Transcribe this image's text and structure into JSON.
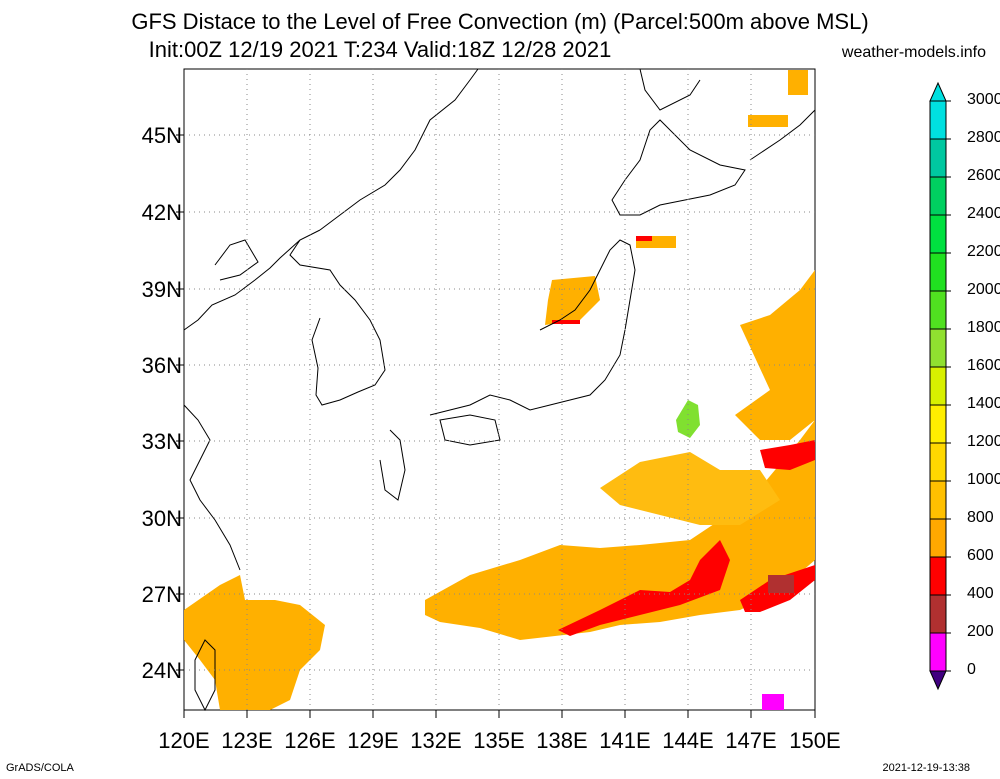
{
  "title_line1": "GFS Distace to the Level of Free Convection (m) (Parcel:500m above MSL)",
  "title_line2": "Init:00Z 12/19 2021 T:234 Valid:18Z 12/28 2021",
  "site": "weather-models.info",
  "lat_labels": [
    "45N",
    "42N",
    "39N",
    "36N",
    "33N",
    "30N",
    "27N",
    "24N"
  ],
  "lon_labels": [
    "120E",
    "123E",
    "126E",
    "129E",
    "132E",
    "135E",
    "138E",
    "141E",
    "144E",
    "147E",
    "150E"
  ],
  "colorbar": {
    "labels": [
      "3000",
      "2800",
      "2600",
      "2400",
      "2200",
      "2000",
      "1800",
      "1600",
      "1400",
      "1200",
      "1000",
      "800",
      "600",
      "400",
      "200",
      "0"
    ],
    "colors": [
      "#00e0e0",
      "#00c8a0",
      "#00d060",
      "#00e040",
      "#20e020",
      "#50e020",
      "#90e030",
      "#d8f000",
      "#ffee00",
      "#ffd800",
      "#ffc000",
      "#ffa800",
      "#ff0000",
      "#b03030",
      "#ff00ff",
      "#400080"
    ]
  },
  "credit_left": "GrADS/COLA",
  "credit_right": "2021-12-19-13:38"
}
